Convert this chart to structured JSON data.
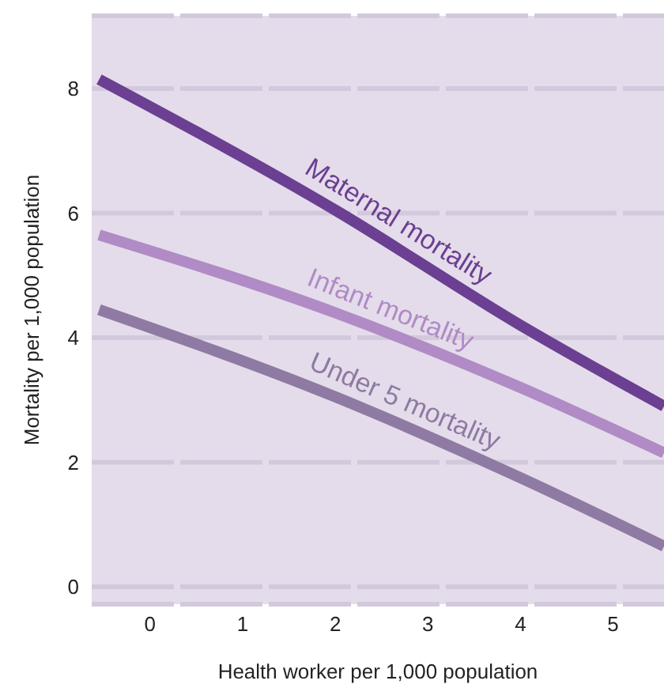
{
  "chart_data": {
    "type": "line",
    "xlabel": "Health worker per 1,000 population",
    "ylabel": "Mortality per 1,000 population",
    "xlim": [
      -0.63,
      5.55
    ],
    "xticks": [
      0,
      1,
      2,
      3,
      4,
      5
    ],
    "ylim": [
      -0.28,
      9.17
    ],
    "yticks": [
      0,
      2,
      4,
      6,
      8
    ],
    "grid": "y",
    "marker": "none",
    "line_style": "solid",
    "series": [
      {
        "name": "Maternal mortality",
        "color": "#6b3f91",
        "x": [
          -0.55,
          2,
          4,
          5.55
        ],
        "values": [
          8.15,
          6.05,
          4.2,
          2.9
        ]
      },
      {
        "name": "Infant mortality",
        "color": "#b08bc6",
        "x": [
          -0.55,
          2,
          4,
          5.55
        ],
        "values": [
          5.65,
          4.4,
          3.2,
          2.15
        ]
      },
      {
        "name": "Under 5 mortality",
        "color": "#8e7aa3",
        "x": [
          -0.55,
          2,
          4,
          5.55
        ],
        "values": [
          4.45,
          3.05,
          1.75,
          0.65
        ]
      }
    ]
  }
}
